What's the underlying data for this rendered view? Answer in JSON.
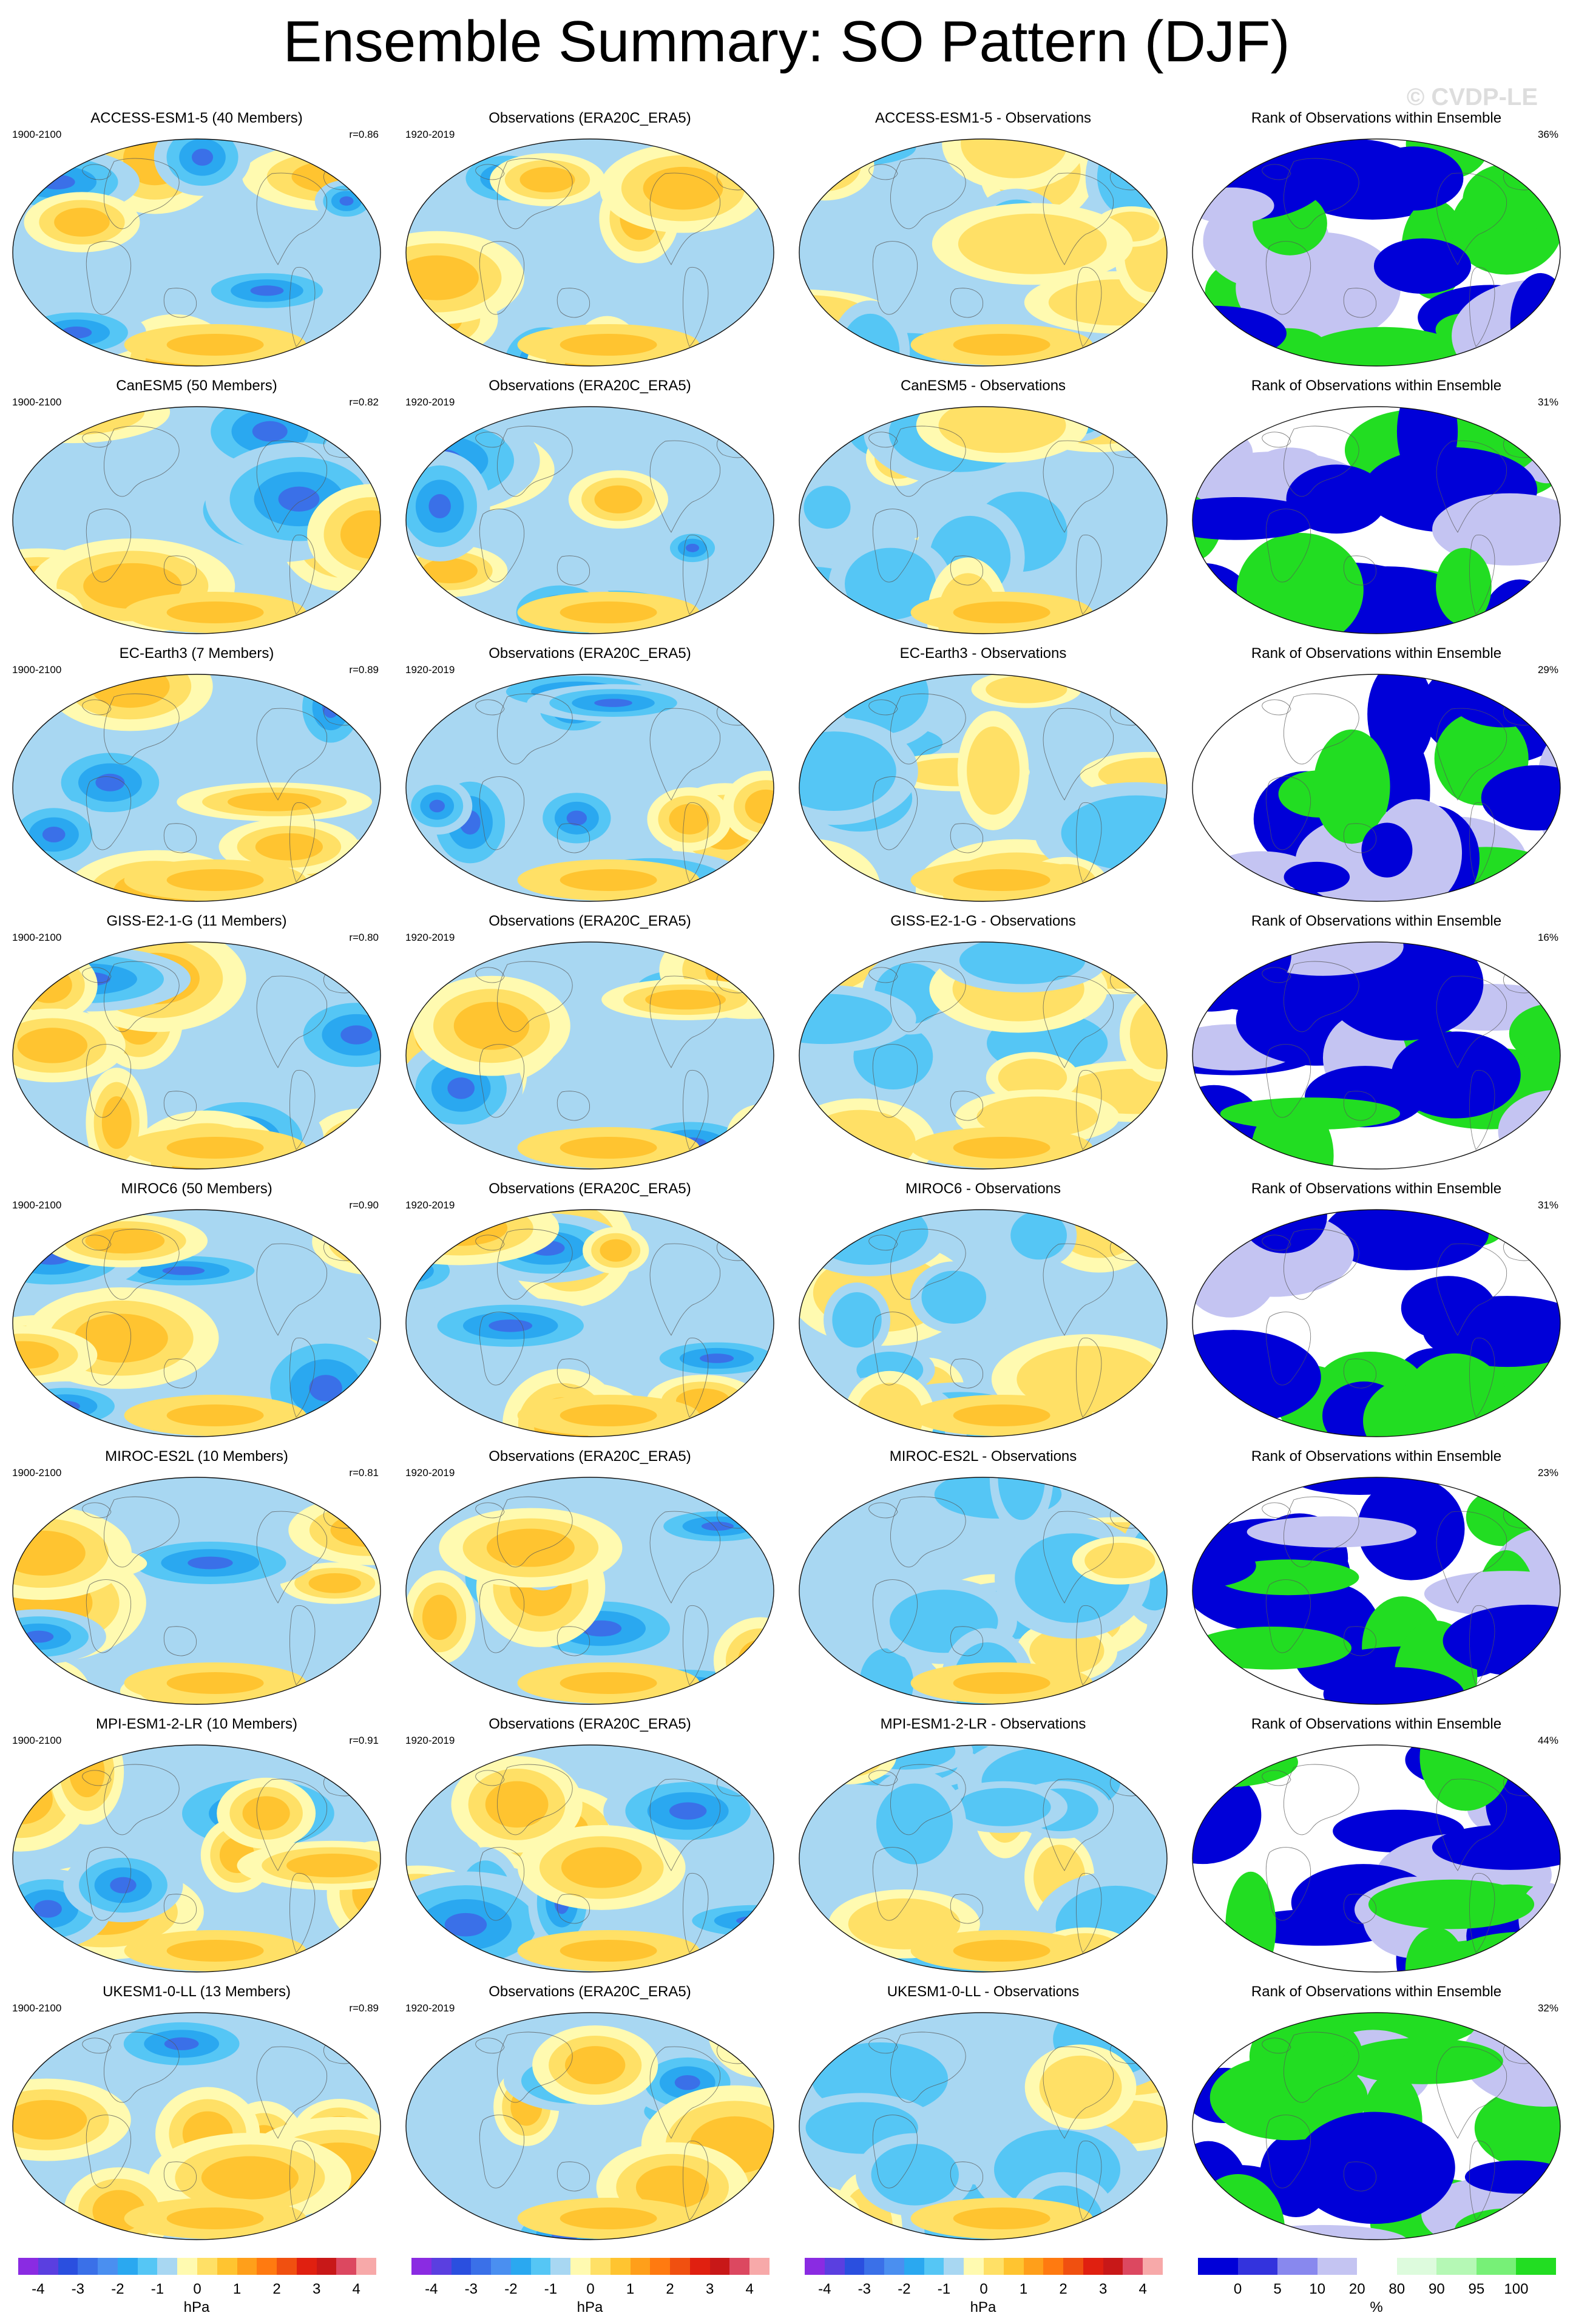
{
  "title": "Ensemble Summary: SO Pattern (DJF)",
  "watermark": "© CVDP-LE",
  "model_period": "1900-2100",
  "obs_period": "1920-2019",
  "obs_title": "Observations (ERA20C_ERA5)",
  "rank_title": "Rank of Observations within Ensemble",
  "diff_suffix": " - Observations",
  "rows": [
    {
      "model": "ACCESS-ESM1-5",
      "members": "ACCESS-ESM1-5 (40 Members)",
      "r": "r=0.86",
      "rank_pct": "36%"
    },
    {
      "model": "CanESM5",
      "members": "CanESM5 (50 Members)",
      "r": "r=0.82",
      "rank_pct": "31%"
    },
    {
      "model": "EC-Earth3",
      "members": "EC-Earth3 (7 Members)",
      "r": "r=0.89",
      "rank_pct": "29%"
    },
    {
      "model": "GISS-E2-1-G",
      "members": "GISS-E2-1-G (11 Members)",
      "r": "r=0.80",
      "rank_pct": "16%"
    },
    {
      "model": "MIROC6",
      "members": "MIROC6 (50 Members)",
      "r": "r=0.90",
      "rank_pct": "31%"
    },
    {
      "model": "MIROC-ES2L",
      "members": "MIROC-ES2L (10 Members)",
      "r": "r=0.81",
      "rank_pct": "23%"
    },
    {
      "model": "MPI-ESM1-2-LR",
      "members": "MPI-ESM1-2-LR (10 Members)",
      "r": "r=0.91",
      "rank_pct": "44%"
    },
    {
      "model": "UKESM1-0-LL",
      "members": "UKESM1-0-LL (13 Members)",
      "r": "r=0.89",
      "rank_pct": "32%"
    }
  ],
  "colorbars": {
    "hpa": {
      "unit": "hPa",
      "labels": [
        "-4",
        "-3",
        "-2",
        "-1",
        "0",
        "1",
        "2",
        "3",
        "4"
      ],
      "colors": [
        "#8a2be2",
        "#5a3fe0",
        "#2a4fdf",
        "#3a70e8",
        "#4a8ff0",
        "#2aa8f0",
        "#55c6f5",
        "#a8d7f2",
        "#fffab0",
        "#ffe066",
        "#ffc430",
        "#ff9f1a",
        "#ff7a10",
        "#f05010",
        "#e02010",
        "#c81818",
        "#dc4860",
        "#f7a9a9"
      ]
    },
    "pct": {
      "unit": "%",
      "labels": [
        "0",
        "5",
        "10",
        "20",
        "80",
        "90",
        "95",
        "100"
      ],
      "colors": [
        "#0000d8",
        "#3333dd",
        "#8888ee",
        "#c4c4f2",
        "#ffffff",
        "#ddfbdd",
        "#b5f8b5",
        "#77f077",
        "#22dd22"
      ]
    },
    "palettes": {
      "anom_pos": [
        "#fffab0",
        "#ffe066",
        "#ffc430",
        "#ff9f1a"
      ],
      "anom_neg": [
        "#a8d7f2",
        "#55c6f5",
        "#2aa8f0",
        "#3a70e8",
        "#2a4fdf"
      ],
      "rank": [
        "#0000d8",
        "#22dd22",
        "#ffffff",
        "#c4c4f2"
      ]
    }
  }
}
